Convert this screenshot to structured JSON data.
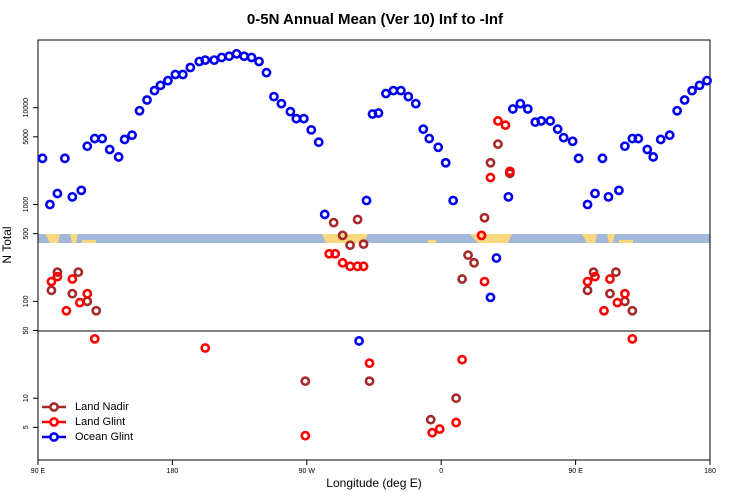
{
  "chart_data": {
    "type": "scatter",
    "title": "0-5N Annual Mean (Ver 10)   Inf to -Inf",
    "x_label": "Longitude (deg E)",
    "y_label": "N Total",
    "log_y": true,
    "xlim": [
      90,
      540
    ],
    "ylim": [
      2.3,
      50000
    ],
    "xticks": [
      {
        "value": 90,
        "label": "90 E"
      },
      {
        "value": 180,
        "label": "180"
      },
      {
        "value": 270,
        "label": "90 W"
      },
      {
        "value": 360,
        "label": "0"
      },
      {
        "value": 450,
        "label": "90 E"
      },
      {
        "value": 540,
        "label": "180"
      }
    ],
    "yticks": [
      5,
      10,
      50,
      100,
      500,
      1000,
      5000,
      10000
    ],
    "legend": "bottom-left",
    "series": [
      {
        "name": "Land Nadir",
        "color": "#a52a2a",
        "x": [
          99,
          103,
          113,
          117,
          123,
          129,
          269,
          288,
          294,
          299,
          304,
          308,
          312,
          353,
          370,
          374,
          378,
          382,
          389,
          393,
          398,
          406,
          458,
          462,
          473,
          477,
          483,
          488
        ],
        "values": [
          130,
          200,
          120,
          200,
          100,
          80,
          15,
          650,
          480,
          380,
          700,
          390,
          15,
          6,
          10,
          170,
          300,
          250,
          730,
          2700,
          4200,
          2100,
          130,
          200,
          120,
          200,
          100,
          80
        ]
      },
      {
        "name": "Land Glint",
        "color": "#ff0000",
        "x": [
          99,
          103,
          109,
          113,
          118,
          123,
          128,
          202,
          269,
          285,
          289,
          294,
          299,
          304,
          308,
          312,
          354,
          359,
          370,
          374,
          389,
          393,
          398,
          403,
          406,
          387,
          458,
          463,
          469,
          473,
          478,
          483,
          488
        ],
        "values": [
          160,
          180,
          80,
          170,
          97,
          120,
          41,
          33,
          4.1,
          310,
          310,
          250,
          230,
          230,
          230,
          23,
          4.4,
          4.8,
          5.6,
          25,
          160,
          1900,
          7300,
          6600,
          2200,
          480,
          160,
          180,
          80,
          170,
          97,
          120,
          41
        ]
      },
      {
        "name": "Ocean Glint",
        "color": "#0000ee",
        "x": [
          93,
          98,
          103,
          108,
          113,
          119,
          123,
          128,
          133,
          138,
          144,
          148,
          153,
          158,
          163,
          168,
          172,
          177,
          182,
          187,
          192,
          198,
          202,
          208,
          213,
          218,
          223,
          228,
          233,
          238,
          243,
          248,
          253,
          259,
          263,
          268,
          273,
          278,
          282,
          310,
          314,
          318,
          323,
          328,
          333,
          338,
          343,
          348,
          352,
          358,
          363,
          368,
          393,
          397,
          405,
          408,
          413,
          418,
          423,
          427,
          433,
          438,
          442,
          448,
          452,
          458,
          463,
          468,
          472,
          479,
          483,
          488,
          492,
          498,
          502,
          507,
          513,
          518,
          523,
          528,
          533,
          538,
          305
        ],
        "values": [
          3000,
          1000,
          1300,
          3000,
          1200,
          1400,
          4000,
          4800,
          4800,
          3700,
          3100,
          4700,
          5200,
          9300,
          12000,
          15000,
          17000,
          19000,
          22000,
          22000,
          26000,
          30000,
          31000,
          31000,
          33000,
          34000,
          36000,
          34000,
          33000,
          30000,
          23000,
          13000,
          11000,
          9100,
          7700,
          7700,
          5900,
          4400,
          790,
          1100,
          8600,
          8800,
          14000,
          15000,
          15000,
          13000,
          11000,
          6000,
          4800,
          3900,
          2700,
          1100,
          110,
          280,
          1200,
          9700,
          11000,
          9700,
          7100,
          7300,
          7300,
          6000,
          4900,
          4500,
          3000,
          1000,
          1300,
          3000,
          1200,
          1400,
          4000,
          4800,
          4800,
          3700,
          3100,
          4700,
          5200,
          9300,
          12000,
          15000,
          17000,
          19000,
          39
        ]
      }
    ]
  }
}
